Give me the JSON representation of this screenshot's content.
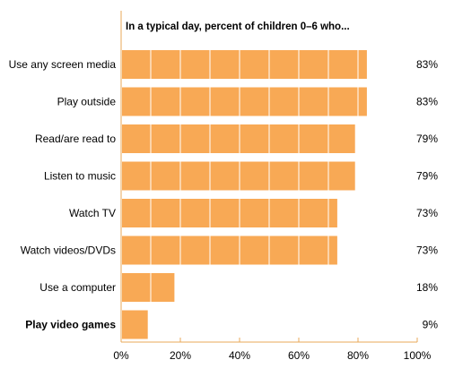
{
  "chart_data": {
    "type": "bar",
    "orientation": "horizontal",
    "title": "In a typical day, percent of children 0–6 who...",
    "categories": [
      "Use any screen media",
      "Play outside",
      "Read/are read to",
      "Listen to music",
      "Watch TV",
      "Watch videos/DVDs",
      "Use a computer",
      "Play video games"
    ],
    "bold_categories": [
      "Play video games"
    ],
    "values": [
      83,
      83,
      79,
      79,
      73,
      73,
      18,
      9
    ],
    "value_labels": [
      "83%",
      "83%",
      "79%",
      "79%",
      "73%",
      "73%",
      "18%",
      "9%"
    ],
    "xlim": [
      0,
      100
    ],
    "x_ticks": [
      0,
      20,
      40,
      60,
      80,
      100
    ],
    "x_tick_labels": [
      "0%",
      "20%",
      "40%",
      "60%",
      "80%",
      "100%"
    ],
    "grid": true,
    "colors": {
      "bar": "#f8a955",
      "grid": "#ffffff",
      "axis": "#e8a85a",
      "text": "#1a1a1a"
    }
  }
}
